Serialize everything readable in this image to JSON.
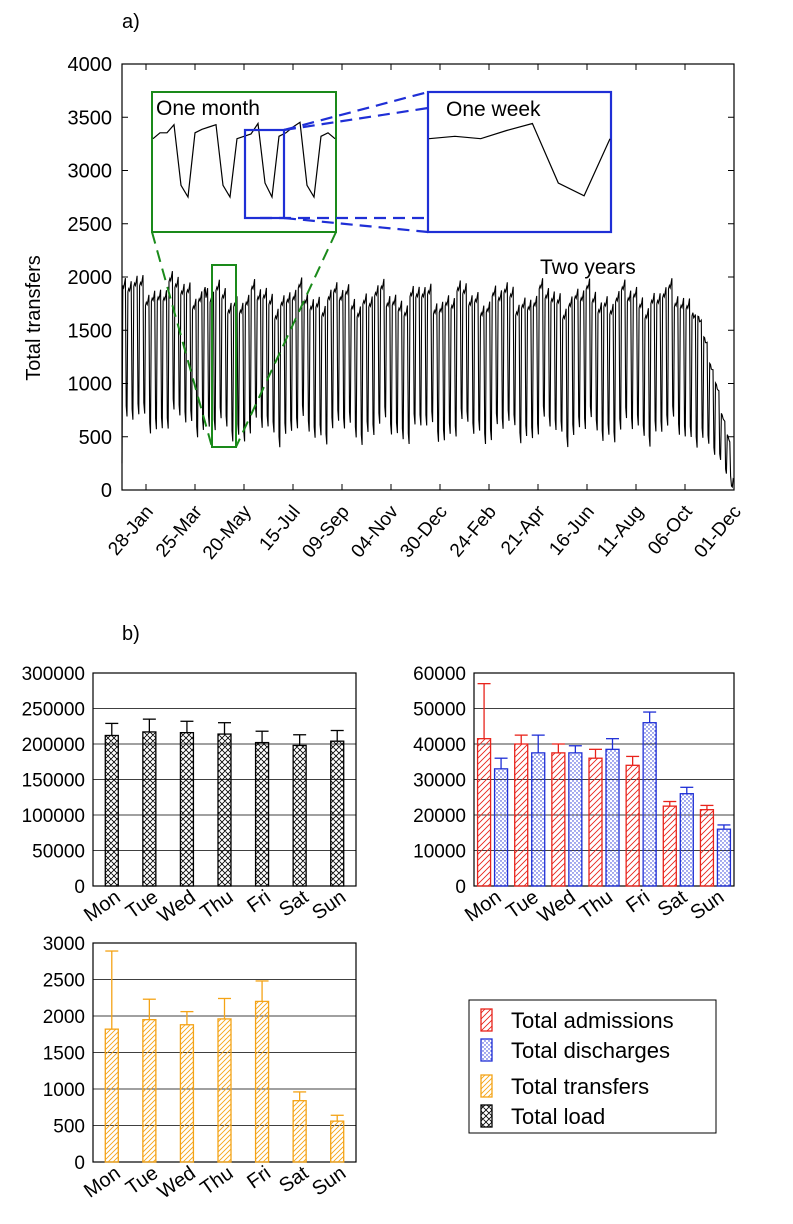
{
  "panel_labels": {
    "a": "a)",
    "b": "b)"
  },
  "colors": {
    "admissions": "#e8231b",
    "discharges": "#1f2fd6",
    "transfers": "#f4a316",
    "load": "#000000",
    "inset_month": "#1a8a1a",
    "inset_week": "#1f2fd6"
  },
  "chart_data": [
    {
      "id": "a",
      "type": "line",
      "title": "",
      "xlabel": "",
      "ylabel": "Total transfers",
      "ylim": [
        0,
        4000
      ],
      "yticks": [
        0,
        500,
        1000,
        1500,
        2000,
        2500,
        3000,
        3500,
        4000
      ],
      "xticks": [
        "28-Jan",
        "25-Mar",
        "20-May",
        "15-Jul",
        "09-Sep",
        "04-Nov",
        "30-Dec",
        "24-Feb",
        "21-Apr",
        "16-Jun",
        "11-Aug",
        "06-Oct",
        "01-Dec"
      ],
      "weekday_values": [
        1750,
        1780,
        1760,
        1800,
        1850
      ],
      "weekend_values": [
        650,
        550
      ],
      "num_days": 730,
      "annotations": {
        "two_years": "Two years",
        "one_month": "One month",
        "one_week": "One week"
      },
      "inset_month_values": [
        3100,
        3150,
        3150,
        3220,
        2700,
        2600,
        3150,
        3180,
        3200,
        3220,
        2700,
        2600,
        3100,
        3120,
        3140,
        3230,
        2720,
        2600,
        3120,
        3150,
        3200,
        3240,
        2700,
        2600,
        3120,
        3150,
        3100
      ],
      "inset_week_values": [
        3100,
        3120,
        3100,
        3170,
        3230,
        2720,
        2610,
        3100
      ]
    },
    {
      "id": "b-load",
      "type": "bar",
      "categories": [
        "Mon",
        "Tue",
        "Wed",
        "Thu",
        "Fri",
        "Sat",
        "Sun"
      ],
      "ylim": [
        0,
        300000
      ],
      "yticks": [
        0,
        50000,
        100000,
        150000,
        200000,
        250000,
        300000
      ],
      "series": [
        {
          "name": "Total load",
          "values": [
            212000,
            217000,
            216000,
            214000,
            202000,
            198000,
            204000
          ],
          "errors": [
            17000,
            18000,
            16000,
            16000,
            16000,
            15000,
            15000
          ]
        }
      ]
    },
    {
      "id": "b-admdis",
      "type": "bar",
      "categories": [
        "Mon",
        "Tue",
        "Wed",
        "Thu",
        "Fri",
        "Sat",
        "Sun"
      ],
      "ylim": [
        0,
        60000
      ],
      "yticks": [
        0,
        10000,
        20000,
        30000,
        40000,
        50000,
        60000
      ],
      "series": [
        {
          "name": "Total admissions",
          "values": [
            41500,
            40000,
            37500,
            36000,
            34000,
            22500,
            21500
          ],
          "errors": [
            15500,
            2500,
            2500,
            2500,
            2500,
            1300,
            1200
          ]
        },
        {
          "name": "Total discharges",
          "values": [
            33000,
            37500,
            37500,
            38500,
            46000,
            26000,
            16000
          ],
          "errors": [
            3000,
            5000,
            2000,
            3000,
            3000,
            1800,
            1200
          ]
        }
      ]
    },
    {
      "id": "b-transfers",
      "type": "bar",
      "categories": [
        "Mon",
        "Tue",
        "Wed",
        "Thu",
        "Fri",
        "Sat",
        "Sun"
      ],
      "ylim": [
        0,
        3000
      ],
      "yticks": [
        0,
        500,
        1000,
        1500,
        2000,
        2500,
        3000
      ],
      "series": [
        {
          "name": "Total transfers",
          "values": [
            1820,
            1950,
            1880,
            1960,
            2200,
            840,
            560
          ],
          "errors": [
            1070,
            280,
            180,
            280,
            280,
            120,
            80
          ]
        }
      ]
    }
  ],
  "legend": {
    "items": [
      {
        "label": "Total admissions",
        "pattern": "admissions"
      },
      {
        "label": "Total discharges",
        "pattern": "discharges"
      },
      {
        "label": "Total transfers",
        "pattern": "transfers"
      },
      {
        "label": "Total load",
        "pattern": "load"
      }
    ]
  }
}
